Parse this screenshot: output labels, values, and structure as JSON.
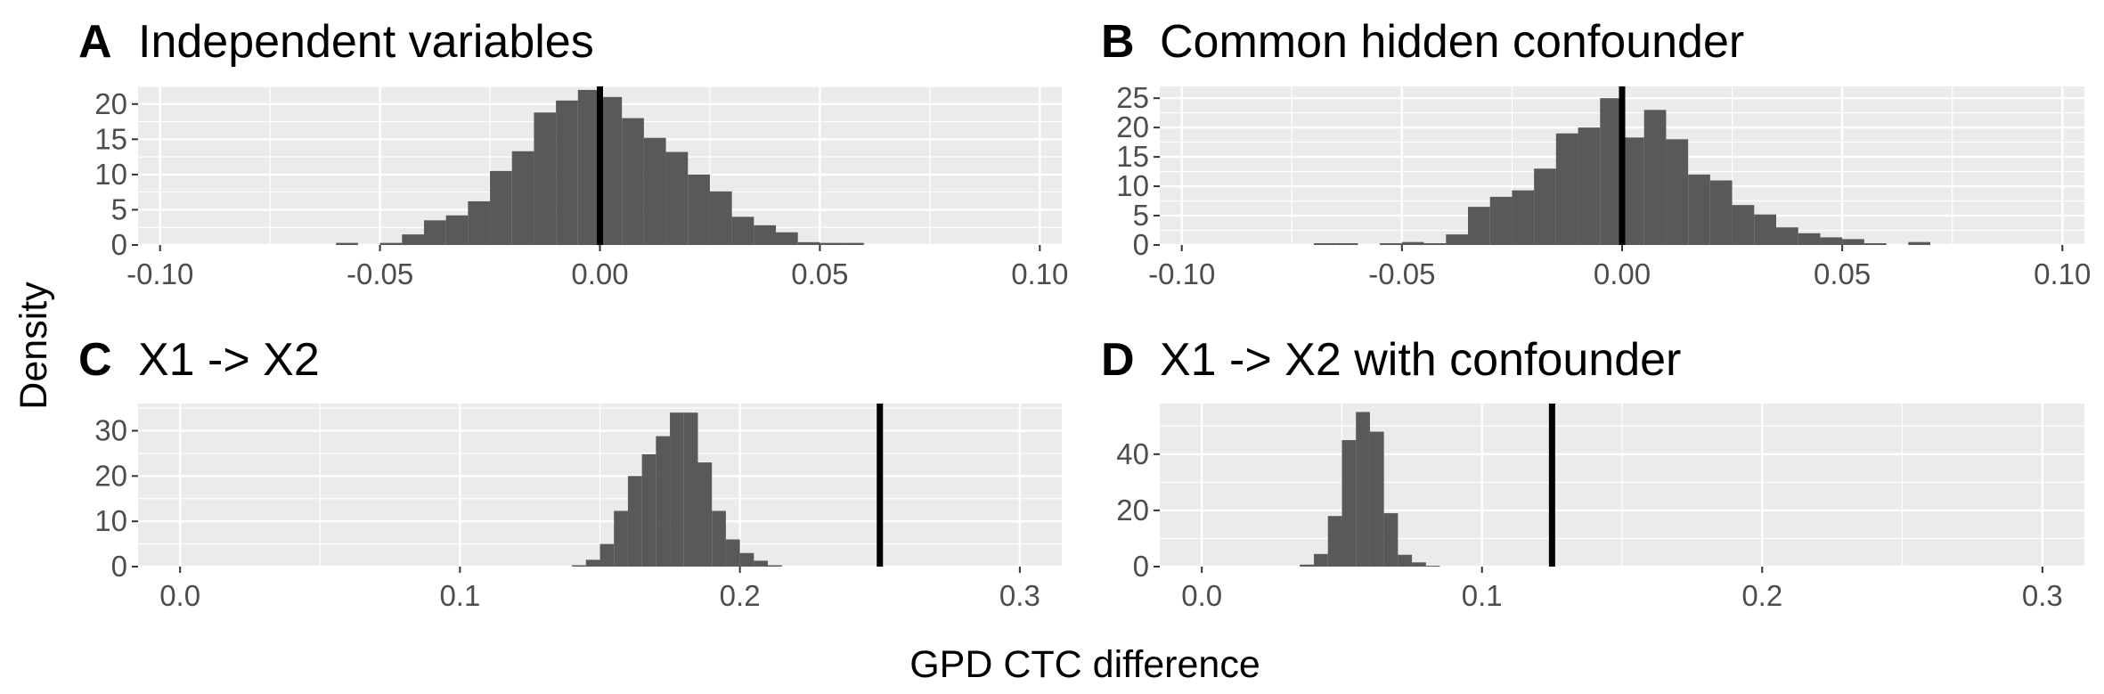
{
  "chart_data": [
    {
      "type": "bar",
      "panel_tag": "A",
      "title": "Independent variables",
      "xlim": [
        -0.105,
        0.105
      ],
      "ylim": [
        0,
        22.5
      ],
      "xticks": [
        -0.1,
        -0.05,
        0.0,
        0.05,
        0.1
      ],
      "xtick_labels": [
        "-0.10",
        "-0.05",
        "0.00",
        "0.05",
        "0.10"
      ],
      "yticks": [
        0,
        5,
        10,
        15,
        20
      ],
      "ytick_labels": [
        "0",
        "5",
        "10",
        "15",
        "20"
      ],
      "bin_width": 0.005,
      "bins_left": [
        -0.06,
        -0.055,
        -0.05,
        -0.045,
        -0.04,
        -0.035,
        -0.03,
        -0.025,
        -0.02,
        -0.015,
        -0.01,
        -0.005,
        0.0,
        0.005,
        0.01,
        0.015,
        0.02,
        0.025,
        0.03,
        0.035,
        0.04,
        0.045,
        0.05,
        0.055
      ],
      "values": [
        0.3,
        0.0,
        0.3,
        1.5,
        3.5,
        4.2,
        6.2,
        10.5,
        13.3,
        18.8,
        20.5,
        22.0,
        21.0,
        18.0,
        15.2,
        13.2,
        10.0,
        7.6,
        4.0,
        2.8,
        1.8,
        0.4,
        0.3,
        0.3
      ],
      "vline": 0.0
    },
    {
      "type": "bar",
      "panel_tag": "B",
      "title": "Common hidden confounder",
      "xlim": [
        -0.105,
        0.105
      ],
      "ylim": [
        0,
        27
      ],
      "xticks": [
        -0.1,
        -0.05,
        0.0,
        0.05,
        0.1
      ],
      "xtick_labels": [
        "-0.10",
        "-0.05",
        "0.00",
        "0.05",
        "0.10"
      ],
      "yticks": [
        0,
        5,
        10,
        15,
        20,
        25
      ],
      "ytick_labels": [
        "0",
        "5",
        "10",
        "15",
        "20",
        "25"
      ],
      "bin_width": 0.005,
      "bins_left": [
        -0.07,
        -0.065,
        -0.06,
        -0.055,
        -0.05,
        -0.045,
        -0.04,
        -0.035,
        -0.03,
        -0.025,
        -0.02,
        -0.015,
        -0.01,
        -0.005,
        0.0,
        0.005,
        0.01,
        0.015,
        0.02,
        0.025,
        0.03,
        0.035,
        0.04,
        0.045,
        0.05,
        0.055,
        0.06,
        0.065
      ],
      "values": [
        0.3,
        0.3,
        0.0,
        0.3,
        0.5,
        0.3,
        1.8,
        6.5,
        8.2,
        9.3,
        13.0,
        19.0,
        20.0,
        25.0,
        18.3,
        23.0,
        18.0,
        12.0,
        11.0,
        6.8,
        5.2,
        3.0,
        2.0,
        1.3,
        1.0,
        0.3,
        0.0,
        0.5
      ],
      "vline": 0.0
    },
    {
      "type": "bar",
      "panel_tag": "C",
      "title": "X1 -> X2",
      "xlim": [
        -0.015,
        0.315
      ],
      "ylim": [
        0,
        36
      ],
      "xticks": [
        0.0,
        0.1,
        0.2,
        0.3
      ],
      "xtick_labels": [
        "0.0",
        "0.1",
        "0.2",
        "0.3"
      ],
      "yticks": [
        0,
        10,
        20,
        30
      ],
      "ytick_labels": [
        "0",
        "10",
        "20",
        "30"
      ],
      "bin_width": 0.005,
      "bins_left": [
        0.14,
        0.145,
        0.15,
        0.155,
        0.16,
        0.165,
        0.17,
        0.175,
        0.18,
        0.185,
        0.19,
        0.195,
        0.2,
        0.205,
        0.21
      ],
      "values": [
        0.3,
        1.5,
        5.0,
        12.3,
        20.0,
        24.8,
        28.8,
        34.0,
        34.0,
        23.0,
        12.3,
        6.0,
        3.0,
        1.3,
        0.3
      ],
      "vline": 0.25
    },
    {
      "type": "bar",
      "panel_tag": "D",
      "title": "X1 -> X2 with confounder",
      "xlim": [
        -0.015,
        0.315
      ],
      "ylim": [
        0,
        58
      ],
      "xticks": [
        0.0,
        0.1,
        0.2,
        0.3
      ],
      "xtick_labels": [
        "0.0",
        "0.1",
        "0.2",
        "0.3"
      ],
      "yticks": [
        0,
        20,
        40
      ],
      "ytick_labels": [
        "0",
        "20",
        "40"
      ],
      "bin_width": 0.005,
      "bins_left": [
        0.035,
        0.04,
        0.045,
        0.05,
        0.055,
        0.06,
        0.065,
        0.07,
        0.075,
        0.08
      ],
      "values": [
        0.7,
        4.5,
        18.0,
        45.0,
        55.0,
        48.0,
        19.0,
        4.2,
        1.5,
        0.3
      ],
      "vline": 0.125
    }
  ],
  "shared": {
    "ylabel": "Density",
    "xlabel": "GPD CTC difference"
  },
  "colors": {
    "panel_bg": "#ebebeb",
    "grid_major": "#ffffff",
    "bar_fill": "#595959",
    "vline": "#000000",
    "tick_text": "#4d4d4d"
  }
}
